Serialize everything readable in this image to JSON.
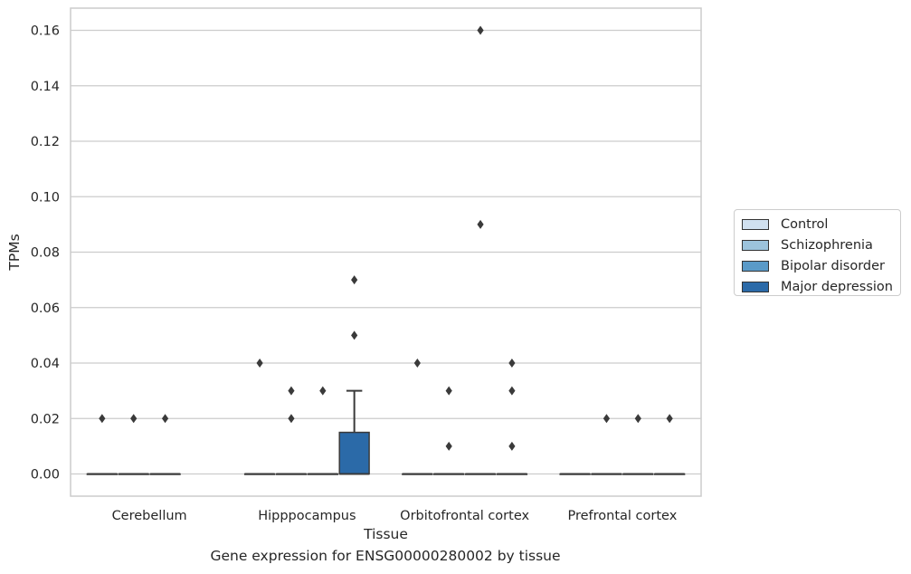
{
  "caption": "Gene expression for ENSG00000280002 by tissue",
  "chart_data": {
    "type": "box",
    "xlabel": "Tissue",
    "ylabel": "TPMs",
    "ylim": [
      -0.008,
      0.168
    ],
    "yticks": [
      "0.00",
      "0.02",
      "0.04",
      "0.06",
      "0.08",
      "0.10",
      "0.12",
      "0.14",
      "0.16"
    ],
    "ytick_values": [
      0,
      0.02,
      0.04,
      0.06,
      0.08,
      0.1,
      0.12,
      0.14,
      0.16
    ],
    "grid": true,
    "legend_position": "right",
    "categories": [
      "Cerebellum",
      "Hipppocampus",
      "Orbitofrontal cortex",
      "Prefrontal cortex"
    ],
    "series": [
      {
        "name": "Control",
        "color": "#d0e0ef",
        "boxes": [
          {
            "q1": 0,
            "median": 0,
            "q3": 0,
            "whisker_low": 0,
            "whisker_high": 0,
            "outliers": [
              0.02
            ]
          },
          {
            "q1": 0,
            "median": 0,
            "q3": 0,
            "whisker_low": 0,
            "whisker_high": 0,
            "outliers": [
              0.04
            ]
          },
          {
            "q1": 0,
            "median": 0,
            "q3": 0,
            "whisker_low": 0,
            "whisker_high": 0,
            "outliers": [
              0.04
            ]
          },
          {
            "q1": 0,
            "median": 0,
            "q3": 0,
            "whisker_low": 0,
            "whisker_high": 0,
            "outliers": []
          }
        ]
      },
      {
        "name": "Schizophrenia",
        "color": "#9cc3dc",
        "boxes": [
          {
            "q1": 0,
            "median": 0,
            "q3": 0,
            "whisker_low": 0,
            "whisker_high": 0,
            "outliers": [
              0.02
            ]
          },
          {
            "q1": 0,
            "median": 0,
            "q3": 0,
            "whisker_low": 0,
            "whisker_high": 0,
            "outliers": [
              0.03,
              0.02
            ]
          },
          {
            "q1": 0,
            "median": 0,
            "q3": 0,
            "whisker_low": 0,
            "whisker_high": 0,
            "outliers": [
              0.03,
              0.01
            ]
          },
          {
            "q1": 0,
            "median": 0,
            "q3": 0,
            "whisker_low": 0,
            "whisker_high": 0,
            "outliers": [
              0.02
            ]
          }
        ]
      },
      {
        "name": "Bipolar disorder",
        "color": "#5a9ac8",
        "boxes": [
          {
            "q1": 0,
            "median": 0,
            "q3": 0,
            "whisker_low": 0,
            "whisker_high": 0,
            "outliers": [
              0.02
            ]
          },
          {
            "q1": 0,
            "median": 0,
            "q3": 0,
            "whisker_low": 0,
            "whisker_high": 0,
            "outliers": [
              0.03
            ]
          },
          {
            "q1": 0,
            "median": 0,
            "q3": 0,
            "whisker_low": 0,
            "whisker_high": 0,
            "outliers": [
              0.16,
              0.09
            ]
          },
          {
            "q1": 0,
            "median": 0,
            "q3": 0,
            "whisker_low": 0,
            "whisker_high": 0,
            "outliers": [
              0.02
            ]
          }
        ]
      },
      {
        "name": "Major depression",
        "color": "#2b6aa8",
        "boxes": [
          null,
          {
            "q1": 0,
            "median": 0,
            "q3": 0.015,
            "whisker_low": 0,
            "whisker_high": 0.03,
            "outliers": [
              0.07,
              0.05
            ]
          },
          {
            "q1": 0,
            "median": 0,
            "q3": 0,
            "whisker_low": 0,
            "whisker_high": 0,
            "outliers": [
              0.04,
              0.03,
              0.01
            ]
          },
          {
            "q1": 0,
            "median": 0,
            "q3": 0,
            "whisker_low": 0,
            "whisker_high": 0,
            "outliers": [
              0.02
            ]
          }
        ]
      }
    ]
  }
}
